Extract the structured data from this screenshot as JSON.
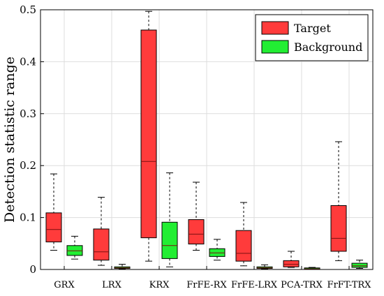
{
  "chart_data": {
    "type": "box",
    "title": "",
    "xlabel": "",
    "ylabel": "Detection statistic range",
    "ylim": [
      0,
      0.5
    ],
    "yticks": [
      0,
      0.1,
      0.2,
      0.3,
      0.4,
      0.5
    ],
    "ytick_labels": [
      "0",
      "0.1",
      "0.2",
      "0.3",
      "0.4",
      "0.5"
    ],
    "grid": true,
    "legend_position": "top-right",
    "categories": [
      "GRX",
      "LRX",
      "KRX",
      "FrFE-RX",
      "FrFE-LRX",
      "PCA-TRX",
      "FrFT-TRX"
    ],
    "series": [
      {
        "name": "Target",
        "color": "#ff3b3b",
        "boxes": [
          {
            "min": 0.037,
            "q1": 0.053,
            "median": 0.077,
            "q3": 0.109,
            "max": 0.184
          },
          {
            "min": 0.008,
            "q1": 0.018,
            "median": 0.034,
            "q3": 0.078,
            "max": 0.139
          },
          {
            "min": 0.016,
            "q1": 0.061,
            "median": 0.208,
            "q3": 0.461,
            "max": 0.497
          },
          {
            "min": 0.037,
            "q1": 0.049,
            "median": 0.068,
            "q3": 0.096,
            "max": 0.168
          },
          {
            "min": 0.007,
            "q1": 0.016,
            "median": 0.031,
            "q3": 0.075,
            "max": 0.129
          },
          {
            "min": 0.004,
            "q1": 0.005,
            "median": 0.01,
            "q3": 0.017,
            "max": 0.035
          },
          {
            "min": 0.017,
            "q1": 0.035,
            "median": 0.06,
            "q3": 0.123,
            "max": 0.246
          }
        ]
      },
      {
        "name": "Background",
        "color": "#22ee33",
        "boxes": [
          {
            "min": 0.02,
            "q1": 0.027,
            "median": 0.036,
            "q3": 0.046,
            "max": 0.064
          },
          {
            "min": 0.001,
            "q1": 0.002,
            "median": 0.003,
            "q3": 0.005,
            "max": 0.01
          },
          {
            "min": 0.005,
            "q1": 0.021,
            "median": 0.046,
            "q3": 0.091,
            "max": 0.186
          },
          {
            "min": 0.018,
            "q1": 0.025,
            "median": 0.032,
            "q3": 0.04,
            "max": 0.058
          },
          {
            "min": 0.001,
            "q1": 0.002,
            "median": 0.003,
            "q3": 0.005,
            "max": 0.009
          },
          {
            "min": 0.0,
            "q1": 0.001,
            "median": 0.001,
            "q3": 0.002,
            "max": 0.004
          },
          {
            "min": 0.002,
            "q1": 0.004,
            "median": 0.007,
            "q3": 0.012,
            "max": 0.018
          }
        ]
      }
    ]
  }
}
